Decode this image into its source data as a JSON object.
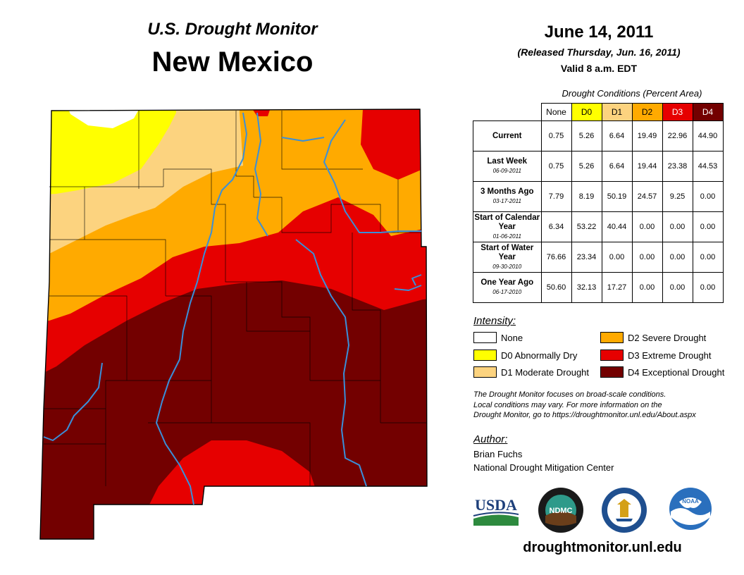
{
  "header": {
    "subtitle": "U.S. Drought Monitor",
    "state": "New Mexico",
    "date": "June 14, 2011",
    "released": "(Released Thursday, Jun. 16, 2011)",
    "valid": "Valid 8 a.m. EDT"
  },
  "table": {
    "caption": "Drought Conditions (Percent Area)",
    "columns": [
      "None",
      "D0",
      "D1",
      "D2",
      "D3",
      "D4"
    ],
    "rows": [
      {
        "label": "Current",
        "date": "",
        "values": [
          "0.75",
          "5.26",
          "6.64",
          "19.49",
          "22.96",
          "44.90"
        ]
      },
      {
        "label": "Last Week",
        "date": "06-09-2011",
        "values": [
          "0.75",
          "5.26",
          "6.64",
          "19.44",
          "23.38",
          "44.53"
        ]
      },
      {
        "label": "3 Months Ago",
        "date": "03-17-2011",
        "values": [
          "7.79",
          "8.19",
          "50.19",
          "24.57",
          "9.25",
          "0.00"
        ]
      },
      {
        "label": "Start of Calendar Year",
        "date": "01-06-2011",
        "values": [
          "6.34",
          "53.22",
          "40.44",
          "0.00",
          "0.00",
          "0.00"
        ]
      },
      {
        "label": "Start of Water Year",
        "date": "09-30-2010",
        "values": [
          "76.66",
          "23.34",
          "0.00",
          "0.00",
          "0.00",
          "0.00"
        ]
      },
      {
        "label": "One Year Ago",
        "date": "06-17-2010",
        "values": [
          "50.60",
          "32.13",
          "17.27",
          "0.00",
          "0.00",
          "0.00"
        ]
      }
    ]
  },
  "legend": {
    "heading": "Intensity:",
    "items": [
      {
        "label": "None",
        "color": "#ffffff"
      },
      {
        "label": "D0 Abnormally Dry",
        "color": "#ffff00"
      },
      {
        "label": "D1 Moderate Drought",
        "color": "#fcd37f"
      },
      {
        "label": "D2 Severe Drought",
        "color": "#ffaa00"
      },
      {
        "label": "D3 Extreme Drought",
        "color": "#e60000"
      },
      {
        "label": "D4 Exceptional Drought",
        "color": "#730000"
      }
    ]
  },
  "note": {
    "line1": "The Drought Monitor focuses on broad-scale conditions.",
    "line2": "Local conditions may vary. For more information on the",
    "line3": "Drought Monitor, go to https://droughtmonitor.unl.edu/About.aspx"
  },
  "author": {
    "heading": "Author:",
    "name": "Brian Fuchs",
    "org": "National Drought Mitigation Center"
  },
  "logos": {
    "usda": "USDA",
    "ndmc": "NDMC",
    "noaa": "NOAA"
  },
  "footer": {
    "url": "droughtmonitor.unl.edu"
  },
  "colors": {
    "none": "#ffffff",
    "d0": "#ffff00",
    "d1": "#fcd37f",
    "d2": "#ffaa00",
    "d3": "#e60000",
    "d4": "#730000",
    "river": "#3a8fd9"
  }
}
